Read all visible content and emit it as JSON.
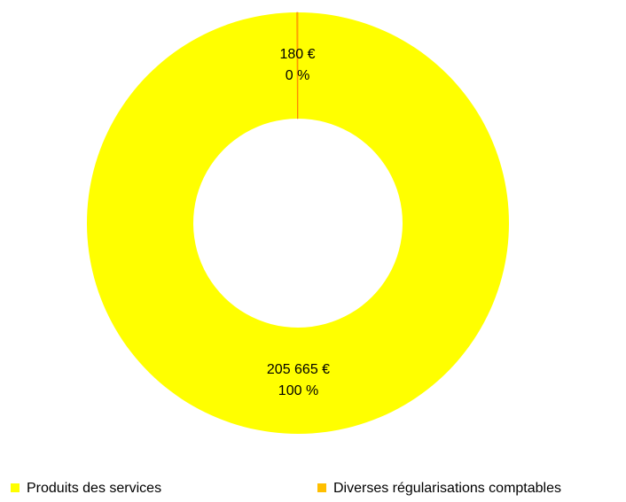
{
  "chart_data": {
    "type": "donut",
    "categories": [
      "Produits des services",
      "Diverses régularisations comptables"
    ],
    "values": [
      205665,
      180
    ],
    "value_labels": [
      "205 665 €",
      "180 €"
    ],
    "percentages": [
      100,
      0
    ],
    "percentage_labels": [
      "100 %",
      "0 %"
    ],
    "colors": [
      "#ffff00",
      "#ffbf00"
    ],
    "legend": "bottom"
  }
}
